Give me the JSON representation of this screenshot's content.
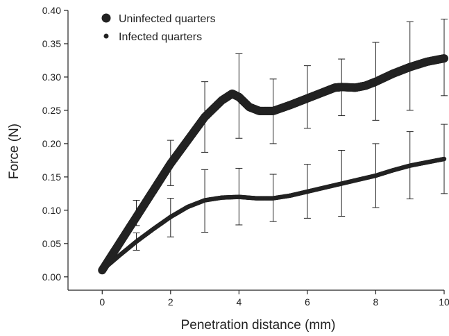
{
  "chart_data": {
    "type": "scatter",
    "xlabel": "Penetration distance (mm)",
    "ylabel": "Force (N)",
    "xlim": [
      -1,
      10
    ],
    "ylim": [
      -0.02,
      0.4
    ],
    "xticks": [
      "0",
      "2",
      "4",
      "6",
      "8",
      "10"
    ],
    "yticks": [
      "0.00",
      "0.05",
      "0.10",
      "0.15",
      "0.20",
      "0.25",
      "0.30",
      "0.35",
      "0.40"
    ],
    "legend_position": "top-left",
    "series": [
      {
        "name": "Uninfected quarters",
        "marker": "large-dot",
        "color": "#222222",
        "curve": [
          [
            0,
            0.01
          ],
          [
            0.5,
            0.05
          ],
          [
            1,
            0.09
          ],
          [
            1.5,
            0.13
          ],
          [
            2,
            0.17
          ],
          [
            2.5,
            0.205
          ],
          [
            3,
            0.24
          ],
          [
            3.5,
            0.265
          ],
          [
            3.8,
            0.275
          ],
          [
            4,
            0.27
          ],
          [
            4.3,
            0.255
          ],
          [
            4.6,
            0.249
          ],
          [
            5,
            0.249
          ],
          [
            5.5,
            0.258
          ],
          [
            6,
            0.268
          ],
          [
            6.5,
            0.278
          ],
          [
            6.8,
            0.284
          ],
          [
            7,
            0.285
          ],
          [
            7.4,
            0.284
          ],
          [
            7.7,
            0.287
          ],
          [
            8,
            0.293
          ],
          [
            8.5,
            0.305
          ],
          [
            9,
            0.315
          ],
          [
            9.5,
            0.323
          ],
          [
            10,
            0.328
          ]
        ],
        "errorbars": [
          {
            "x": 1,
            "y": 0.096,
            "low": 0.077,
            "high": 0.115
          },
          {
            "x": 2,
            "y": 0.171,
            "low": 0.137,
            "high": 0.205
          },
          {
            "x": 3,
            "y": 0.24,
            "low": 0.187,
            "high": 0.293
          },
          {
            "x": 4,
            "y": 0.271,
            "low": 0.208,
            "high": 0.335
          },
          {
            "x": 5,
            "y": 0.249,
            "low": 0.2,
            "high": 0.297
          },
          {
            "x": 6,
            "y": 0.27,
            "low": 0.223,
            "high": 0.317
          },
          {
            "x": 7,
            "y": 0.284,
            "low": 0.242,
            "high": 0.327
          },
          {
            "x": 8,
            "y": 0.293,
            "low": 0.235,
            "high": 0.352
          },
          {
            "x": 9,
            "y": 0.316,
            "low": 0.25,
            "high": 0.383
          },
          {
            "x": 10,
            "y": 0.329,
            "low": 0.272,
            "high": 0.387
          }
        ]
      },
      {
        "name": "Infected quarters",
        "marker": "small-dot",
        "color": "#222222",
        "curve": [
          [
            0,
            0.01
          ],
          [
            0.5,
            0.032
          ],
          [
            1,
            0.053
          ],
          [
            1.5,
            0.072
          ],
          [
            2,
            0.09
          ],
          [
            2.5,
            0.105
          ],
          [
            3,
            0.115
          ],
          [
            3.5,
            0.119
          ],
          [
            4,
            0.12
          ],
          [
            4.5,
            0.118
          ],
          [
            5,
            0.118
          ],
          [
            5.5,
            0.122
          ],
          [
            6,
            0.128
          ],
          [
            6.5,
            0.134
          ],
          [
            7,
            0.14
          ],
          [
            7.5,
            0.146
          ],
          [
            8,
            0.152
          ],
          [
            8.5,
            0.16
          ],
          [
            9,
            0.167
          ],
          [
            9.5,
            0.172
          ],
          [
            10,
            0.177
          ]
        ],
        "errorbars": [
          {
            "x": 1,
            "y": 0.053,
            "low": 0.04,
            "high": 0.066
          },
          {
            "x": 2,
            "y": 0.089,
            "low": 0.06,
            "high": 0.118
          },
          {
            "x": 3,
            "y": 0.114,
            "low": 0.067,
            "high": 0.161
          },
          {
            "x": 4,
            "y": 0.12,
            "low": 0.078,
            "high": 0.163
          },
          {
            "x": 5,
            "y": 0.118,
            "low": 0.083,
            "high": 0.154
          },
          {
            "x": 6,
            "y": 0.128,
            "low": 0.088,
            "high": 0.169
          },
          {
            "x": 7,
            "y": 0.14,
            "low": 0.091,
            "high": 0.19
          },
          {
            "x": 8,
            "y": 0.152,
            "low": 0.104,
            "high": 0.2
          },
          {
            "x": 9,
            "y": 0.167,
            "low": 0.117,
            "high": 0.218
          },
          {
            "x": 10,
            "y": 0.177,
            "low": 0.125,
            "high": 0.229
          }
        ]
      }
    ]
  }
}
